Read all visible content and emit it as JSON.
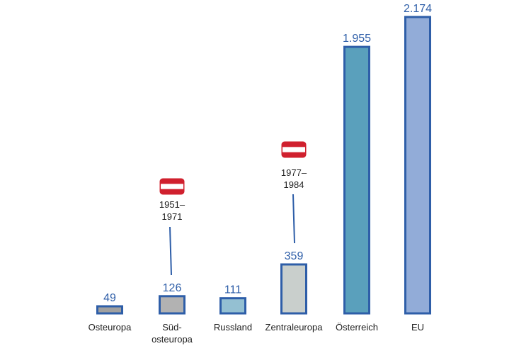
{
  "chart_data": {
    "type": "bar",
    "title": "",
    "xlabel": "",
    "ylabel": "",
    "ylim": [
      0,
      2174
    ],
    "grid": false,
    "categories": [
      [
        "Osteuropa"
      ],
      [
        "Süd-",
        "osteuropa"
      ],
      [
        "Russland"
      ],
      [
        "Zentraleuropa"
      ],
      [
        "Österreich"
      ],
      [
        "EU"
      ]
    ],
    "values": [
      49,
      126,
      111,
      359,
      1955,
      2174
    ],
    "value_labels": [
      "49",
      "126",
      "111",
      "359",
      "1.955",
      "2.174"
    ],
    "bar_colors": [
      "#a0a0a0",
      "#b2b2b2",
      "#94c0d2",
      "#c9cfcc",
      "#5aa0bc",
      "#92acd8"
    ],
    "outline_color": "#2e5ea8",
    "annotations": [
      {
        "category_index": 1,
        "lines": [
          "1951–",
          "1971"
        ],
        "icon": "austria-flag-icon"
      },
      {
        "category_index": 3,
        "lines": [
          "1977–",
          "1984"
        ],
        "icon": "austria-flag-icon"
      }
    ],
    "flag_colors": {
      "red": "#d0202e",
      "white": "#ffffff"
    }
  }
}
